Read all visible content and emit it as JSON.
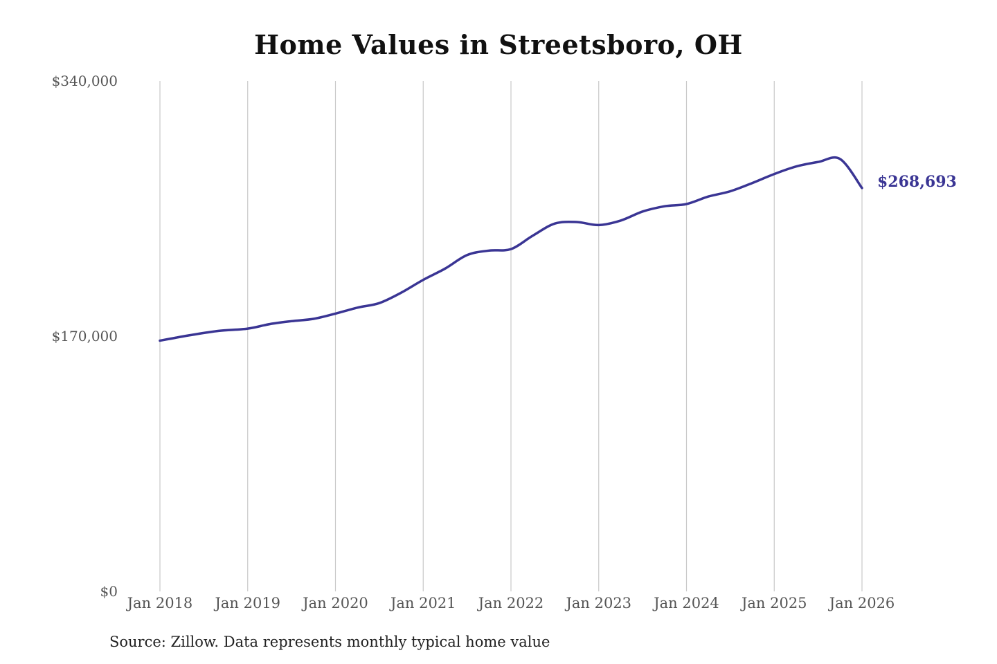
{
  "chart_data": {
    "type": "line",
    "title": "Home Values in Streetsboro, OH",
    "source": "Source: Zillow. Data represents monthly typical home value",
    "ylim": [
      0,
      340000
    ],
    "y_ticks": [
      {
        "value": 0,
        "label": "$0"
      },
      {
        "value": 170000,
        "label": "$170,000"
      },
      {
        "value": 340000,
        "label": "$340,000"
      }
    ],
    "x_ticks": [
      {
        "value": 2018,
        "label": "Jan 2018"
      },
      {
        "value": 2019,
        "label": "Jan 2019"
      },
      {
        "value": 2020,
        "label": "Jan 2020"
      },
      {
        "value": 2021,
        "label": "Jan 2021"
      },
      {
        "value": 2022,
        "label": "Jan 2022"
      },
      {
        "value": 2023,
        "label": "Jan 2023"
      },
      {
        "value": 2024,
        "label": "Jan 2024"
      },
      {
        "value": 2025,
        "label": "Jan 2025"
      },
      {
        "value": 2026,
        "label": "Jan 2026"
      }
    ],
    "xlim": [
      2018,
      2026
    ],
    "grid": "vertical",
    "line_color": "#3a3594",
    "grid_color": "#c8c8c8",
    "series": [
      {
        "x": [
          2018.0,
          2018.33,
          2018.67,
          2019.0,
          2019.25,
          2019.5,
          2019.75,
          2020.0,
          2020.25,
          2020.5,
          2020.75,
          2021.0,
          2021.25,
          2021.5,
          2021.75,
          2022.0,
          2022.25,
          2022.5,
          2022.75,
          2023.0,
          2023.25,
          2023.5,
          2023.75,
          2024.0,
          2024.25,
          2024.5,
          2024.75,
          2025.0,
          2025.25,
          2025.5,
          2025.75,
          2026.0
        ],
        "y": [
          167000,
          170500,
          173500,
          175000,
          178000,
          180000,
          181500,
          185000,
          189000,
          192000,
          199000,
          207500,
          215000,
          224000,
          227000,
          228000,
          237000,
          245000,
          246000,
          244000,
          247000,
          253000,
          256500,
          258000,
          263000,
          266500,
          272000,
          278000,
          283000,
          286000,
          288000,
          268693
        ]
      }
    ],
    "end_label": "$268,693"
  }
}
